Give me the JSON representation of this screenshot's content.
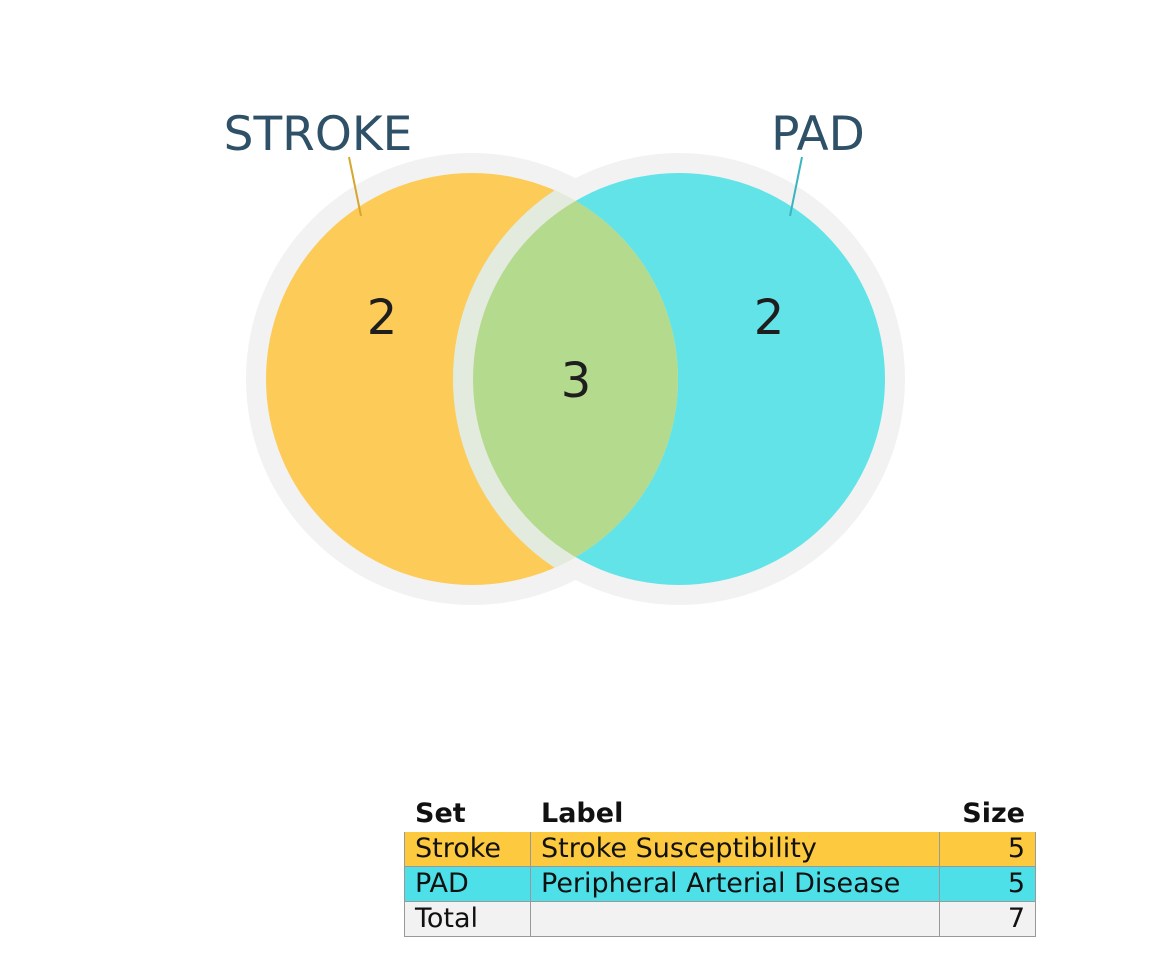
{
  "venn": {
    "sets": [
      {
        "id": "stroke",
        "label": "STROKE",
        "fill": "#fdcb58",
        "accent": "#d7a62e"
      },
      {
        "id": "pad",
        "label": "PAD",
        "fill": "#62e3e8",
        "accent": "#3bb4c1"
      }
    ],
    "regions": {
      "stroke_only": "2",
      "intersection": "3",
      "pad_only": "2"
    },
    "colors": {
      "intersection": "#b4da8e",
      "halo": "#f2f2f2",
      "label_text": "#2e5168"
    }
  },
  "table": {
    "headers": {
      "set": "Set",
      "label": "Label",
      "size": "Size"
    },
    "rows": [
      {
        "set": "Stroke",
        "label": "Stroke Susceptibility",
        "size": "5",
        "color": "#fdc93e"
      },
      {
        "set": "PAD",
        "label": "Peripheral Arterial Disease",
        "size": "5",
        "color": "#4de0e8"
      },
      {
        "set": "Total",
        "label": "",
        "size": "7",
        "color": "#f2f2f2"
      }
    ]
  }
}
